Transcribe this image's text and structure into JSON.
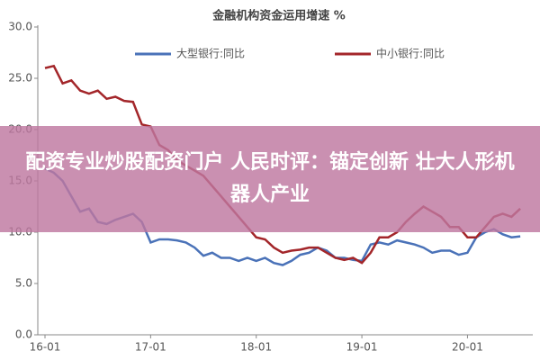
{
  "chart_data": {
    "type": "line",
    "title": "金融机构资金运用增速 %",
    "categories": [
      "16-01",
      null,
      null,
      null,
      null,
      null,
      null,
      null,
      null,
      null,
      null,
      null,
      "17-01",
      null,
      null,
      null,
      null,
      null,
      null,
      null,
      null,
      null,
      null,
      null,
      "18-01",
      null,
      null,
      null,
      null,
      null,
      null,
      null,
      null,
      null,
      null,
      null,
      "19-01",
      null,
      null,
      null,
      null,
      null,
      null,
      null,
      null,
      null,
      null,
      null,
      "20-01",
      null,
      null,
      null,
      null,
      null,
      null
    ],
    "series": [
      {
        "name": "大型银行:同比",
        "color": "#4a72b8",
        "values": [
          16.2,
          15.8,
          15.0,
          13.5,
          12.0,
          12.3,
          11.0,
          10.8,
          11.2,
          11.5,
          11.8,
          11.0,
          9.0,
          9.3,
          9.3,
          9.2,
          9.0,
          8.5,
          7.7,
          8.0,
          7.5,
          7.5,
          7.2,
          7.5,
          7.2,
          7.5,
          7.0,
          6.8,
          7.2,
          7.8,
          8.0,
          8.5,
          8.2,
          7.5,
          7.5,
          7.3,
          7.2,
          8.8,
          9.0,
          8.8,
          9.2,
          9.0,
          8.8,
          8.5,
          8.0,
          8.2,
          8.2,
          7.8,
          8.0,
          9.5,
          10.0,
          10.3,
          9.8,
          9.5,
          9.6
        ]
      },
      {
        "name": "中小银行:同比",
        "color": "#a3262a",
        "values": [
          26.0,
          26.2,
          24.5,
          24.8,
          23.8,
          23.5,
          23.8,
          23.0,
          23.2,
          22.8,
          22.7,
          20.5,
          20.3,
          18.5,
          18.0,
          17.0,
          16.5,
          16.0,
          15.5,
          14.5,
          13.5,
          12.5,
          11.5,
          10.5,
          9.5,
          9.3,
          8.5,
          8.0,
          8.2,
          8.3,
          8.5,
          8.5,
          8.0,
          7.5,
          7.3,
          7.5,
          7.0,
          8.0,
          9.5,
          9.5,
          10.0,
          11.0,
          11.8,
          12.5,
          12.0,
          11.5,
          10.5,
          10.5,
          9.5,
          9.5,
          10.5,
          11.5,
          11.8,
          11.5,
          12.3
        ]
      }
    ],
    "ylim": [
      0,
      30
    ],
    "yticks": [
      {
        "value": 0,
        "label": "0.0"
      },
      {
        "value": 5,
        "label": "5.0"
      },
      {
        "value": 10,
        "label": "10.0"
      },
      {
        "value": 15,
        "label": "15.0"
      },
      {
        "value": 20,
        "label": "20.0"
      },
      {
        "value": 25,
        "label": "25.0"
      },
      {
        "value": 30,
        "label": "30.0"
      }
    ]
  },
  "banner": {
    "text": "配资专业炒股配资门户 人民时评：锚定创新 壮大人形机器人产业"
  }
}
